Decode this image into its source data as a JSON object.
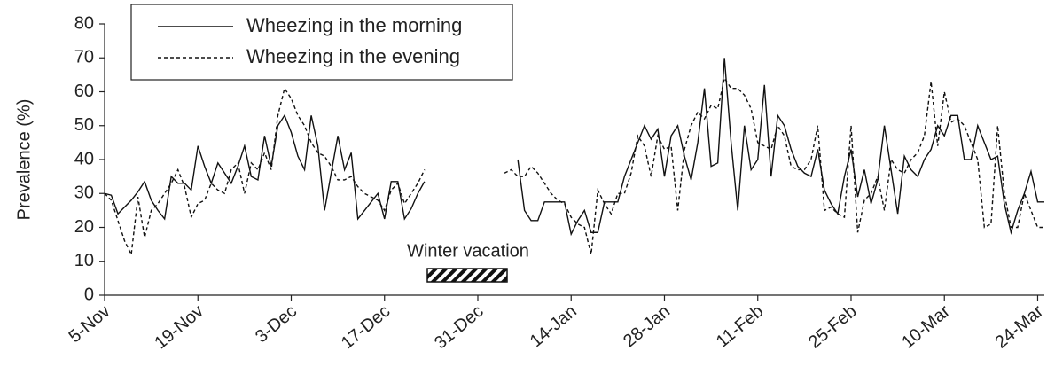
{
  "chart_data": {
    "type": "line",
    "y_label": "Prevalence (%)",
    "annotation": "Winter vacation",
    "legend": "top-left",
    "ylim": [
      0,
      80
    ],
    "yticks": [
      0,
      10,
      20,
      30,
      40,
      50,
      60,
      70,
      80
    ],
    "grid": false,
    "categories": [
      "5-Nov",
      null,
      null,
      null,
      null,
      null,
      null,
      null,
      null,
      null,
      null,
      null,
      null,
      null,
      "19-Nov",
      null,
      null,
      null,
      null,
      null,
      null,
      null,
      null,
      null,
      null,
      null,
      null,
      null,
      "3-Dec",
      null,
      null,
      null,
      null,
      null,
      null,
      null,
      null,
      null,
      null,
      null,
      null,
      null,
      "17-Dec",
      null,
      null,
      null,
      null,
      null,
      null,
      null,
      null,
      null,
      null,
      null,
      null,
      null,
      "31-Dec",
      null,
      null,
      null,
      null,
      null,
      null,
      null,
      null,
      null,
      null,
      null,
      null,
      null,
      "14-Jan",
      null,
      null,
      null,
      null,
      null,
      null,
      null,
      null,
      null,
      null,
      null,
      null,
      null,
      "28-Jan",
      null,
      null,
      null,
      null,
      null,
      null,
      null,
      null,
      null,
      null,
      null,
      null,
      null,
      "11-Feb",
      null,
      null,
      null,
      null,
      null,
      null,
      null,
      null,
      null,
      null,
      null,
      null,
      null,
      "25-Feb",
      null,
      null,
      null,
      null,
      null,
      null,
      null,
      null,
      null,
      null,
      null,
      null,
      null,
      "10-Mar",
      null,
      null,
      null,
      null,
      null,
      null,
      null,
      null,
      null,
      null,
      null,
      null,
      null,
      "24-Mar",
      null
    ],
    "series": [
      {
        "name": "Wheezing in the morning",
        "color": "#111111",
        "line_style": "solid",
        "values": [
          30,
          29.5,
          24,
          26,
          28,
          30.5,
          33.5,
          28,
          25,
          22.5,
          35,
          33,
          33,
          31,
          44,
          38,
          33,
          39,
          36,
          33,
          38,
          44,
          35,
          34,
          47,
          38,
          50,
          53,
          48,
          41,
          37,
          53,
          44,
          25,
          36,
          47,
          37,
          42,
          22.5,
          25,
          27.5,
          30,
          22.5,
          33.5,
          33.5,
          22.5,
          25.5,
          30,
          33.5,
          null,
          null,
          null,
          null,
          null,
          null,
          null,
          null,
          null,
          null,
          null,
          null,
          null,
          40,
          25,
          22,
          22,
          27.5,
          27.5,
          27.5,
          27.5,
          18,
          22,
          25,
          18.5,
          18.5,
          27.5,
          27.5,
          27.5,
          35,
          40,
          45,
          50,
          46,
          49,
          35,
          47,
          50,
          41,
          34,
          45,
          61,
          38,
          39,
          70,
          45,
          25,
          50,
          37,
          40,
          62,
          35,
          53,
          50,
          43,
          38,
          36,
          35,
          43,
          31,
          27,
          24,
          35,
          43,
          29,
          37,
          27,
          34,
          50,
          37,
          24,
          41,
          37,
          35,
          40,
          43,
          50,
          47,
          53,
          53,
          40,
          40,
          50,
          45,
          40,
          41,
          27,
          18.5,
          25,
          30,
          36.5,
          27.5,
          27.5
        ]
      },
      {
        "name": "Wheezing in the evening",
        "color": "#111111",
        "line_style": "dashed",
        "values": [
          30,
          28,
          22,
          16,
          12,
          29,
          17,
          25,
          27,
          30,
          33,
          37,
          32,
          23,
          27,
          28,
          33,
          31,
          30,
          37,
          39,
          30,
          39,
          37,
          42,
          37,
          53,
          61,
          58,
          53,
          50,
          45,
          42,
          41,
          38,
          34,
          34,
          35,
          32,
          30,
          29,
          28,
          25,
          31,
          33,
          27,
          30,
          33,
          37,
          null,
          null,
          null,
          null,
          null,
          null,
          null,
          null,
          null,
          null,
          null,
          36,
          37,
          35,
          35,
          38,
          36,
          33,
          30,
          28,
          27,
          23,
          21,
          20,
          12,
          31,
          27,
          24,
          30,
          30,
          36,
          47,
          44,
          35,
          47,
          43,
          44,
          25,
          43,
          50,
          54,
          52,
          56,
          55,
          64,
          61,
          61,
          59,
          55,
          45,
          44,
          43,
          50,
          47,
          38,
          37,
          37,
          40,
          50,
          25,
          26,
          24,
          23,
          50,
          18.5,
          28,
          30,
          35,
          25,
          40,
          37,
          36,
          40,
          42,
          47,
          63,
          44,
          60,
          51,
          52,
          50,
          45,
          40,
          20,
          21,
          50,
          30,
          20,
          20,
          30,
          25,
          20,
          20
        ]
      }
    ]
  }
}
